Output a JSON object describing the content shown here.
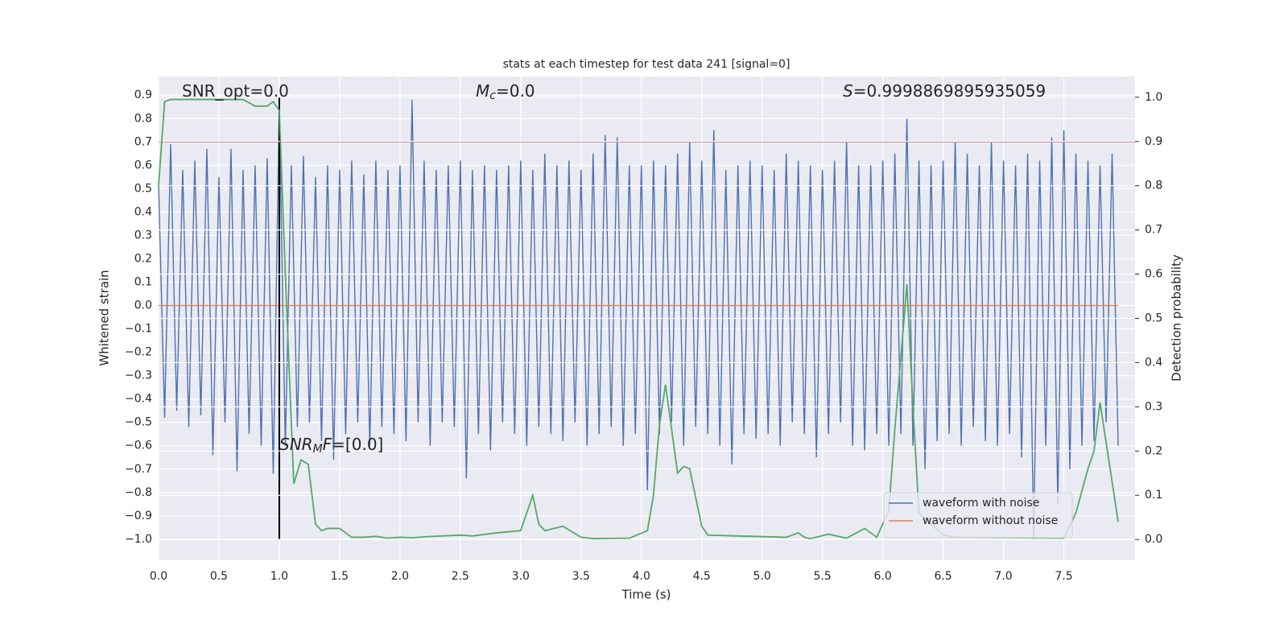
{
  "chart_data": {
    "type": "line",
    "title": "stats at each timestep for test data 241 [signal=0]",
    "xlabel": "Time (s)",
    "ylabel": "Whitened strain",
    "y2label": "Detection probability",
    "xlim": [
      0,
      8.09
    ],
    "ylim": [
      -1.09,
      0.98
    ],
    "y2lim": [
      -0.047,
      1.047
    ],
    "grid": true,
    "legend": "lower right",
    "xticks": [
      {
        "value": 0,
        "label": "0.0"
      },
      {
        "value": 0.5,
        "label": "0.5"
      },
      {
        "value": 1,
        "label": "1.0"
      },
      {
        "value": 1.5,
        "label": "1.5"
      },
      {
        "value": 2,
        "label": "2.0"
      },
      {
        "value": 2.5,
        "label": "2.5"
      },
      {
        "value": 3,
        "label": "3.0"
      },
      {
        "value": 3.5,
        "label": "3.5"
      },
      {
        "value": 4,
        "label": "4.0"
      },
      {
        "value": 4.5,
        "label": "4.5"
      },
      {
        "value": 5,
        "label": "5.0"
      },
      {
        "value": 5.5,
        "label": "5.5"
      },
      {
        "value": 6,
        "label": "6.0"
      },
      {
        "value": 6.5,
        "label": "6.5"
      },
      {
        "value": 7,
        "label": "7.0"
      },
      {
        "value": 7.5,
        "label": "7.5"
      }
    ],
    "yticks": [
      {
        "value": -1,
        "label": "−1.0"
      },
      {
        "value": -0.9,
        "label": "−0.9"
      },
      {
        "value": -0.8,
        "label": "−0.8"
      },
      {
        "value": -0.7,
        "label": "−0.7"
      },
      {
        "value": -0.6,
        "label": "−0.6"
      },
      {
        "value": -0.5,
        "label": "−0.5"
      },
      {
        "value": -0.4,
        "label": "−0.4"
      },
      {
        "value": -0.3,
        "label": "−0.3"
      },
      {
        "value": -0.2,
        "label": "−0.2"
      },
      {
        "value": -0.1,
        "label": "−0.1"
      },
      {
        "value": 0,
        "label": "0.0"
      },
      {
        "value": 0.1,
        "label": "0.1"
      },
      {
        "value": 0.2,
        "label": "0.2"
      },
      {
        "value": 0.3,
        "label": "0.3"
      },
      {
        "value": 0.4,
        "label": "0.4"
      },
      {
        "value": 0.5,
        "label": "0.5"
      },
      {
        "value": 0.6,
        "label": "0.6"
      },
      {
        "value": 0.7,
        "label": "0.7"
      },
      {
        "value": 0.8,
        "label": "0.8"
      },
      {
        "value": 0.9,
        "label": "0.9"
      }
    ],
    "y2ticks": [
      {
        "value": 0,
        "label": "0.0"
      },
      {
        "value": 0.1,
        "label": "0.1"
      },
      {
        "value": 0.2,
        "label": "0.2"
      },
      {
        "value": 0.3,
        "label": "0.3"
      },
      {
        "value": 0.4,
        "label": "0.4"
      },
      {
        "value": 0.5,
        "label": "0.5"
      },
      {
        "value": 0.6,
        "label": "0.6"
      },
      {
        "value": 0.7,
        "label": "0.7"
      },
      {
        "value": 0.8,
        "label": "0.8"
      },
      {
        "value": 0.9,
        "label": "0.9"
      },
      {
        "value": 1,
        "label": "1.0"
      }
    ],
    "series": [
      {
        "name": "waveform with noise",
        "color": "#4c72b0",
        "x": [
          0,
          0.05,
          0.1,
          0.15,
          0.2,
          0.25,
          0.3,
          0.35,
          0.4,
          0.45,
          0.5,
          0.55,
          0.6,
          0.65,
          0.7,
          0.75,
          0.8,
          0.85,
          0.9,
          0.95,
          1,
          1.05,
          1.1,
          1.15,
          1.2,
          1.25,
          1.3,
          1.35,
          1.4,
          1.45,
          1.5,
          1.55,
          1.6,
          1.65,
          1.7,
          1.75,
          1.8,
          1.85,
          1.9,
          1.95,
          2,
          2.05,
          2.1,
          2.15,
          2.2,
          2.25,
          2.3,
          2.35,
          2.4,
          2.45,
          2.5,
          2.55,
          2.6,
          2.65,
          2.7,
          2.75,
          2.8,
          2.85,
          2.9,
          2.95,
          3,
          3.05,
          3.1,
          3.15,
          3.2,
          3.25,
          3.3,
          3.35,
          3.4,
          3.45,
          3.5,
          3.55,
          3.6,
          3.65,
          3.7,
          3.75,
          3.8,
          3.85,
          3.9,
          3.95,
          4,
          4.05,
          4.1,
          4.15,
          4.2,
          4.25,
          4.3,
          4.35,
          4.4,
          4.45,
          4.5,
          4.55,
          4.6,
          4.65,
          4.7,
          4.75,
          4.8,
          4.85,
          4.9,
          4.95,
          5,
          5.05,
          5.1,
          5.15,
          5.2,
          5.25,
          5.3,
          5.35,
          5.4,
          5.45,
          5.5,
          5.55,
          5.6,
          5.65,
          5.7,
          5.75,
          5.8,
          5.85,
          5.9,
          5.95,
          6,
          6.05,
          6.1,
          6.15,
          6.2,
          6.25,
          6.3,
          6.35,
          6.4,
          6.45,
          6.5,
          6.55,
          6.6,
          6.65,
          6.7,
          6.75,
          6.8,
          6.85,
          6.9,
          6.95,
          7,
          7.05,
          7.1,
          7.15,
          7.2,
          7.25,
          7.3,
          7.35,
          7.4,
          7.45,
          7.5,
          7.55,
          7.6,
          7.65,
          7.7,
          7.75,
          7.8,
          7.85,
          7.9,
          7.95
        ],
        "values": [
          0.52,
          -0.48,
          0.69,
          -0.45,
          0.58,
          -0.52,
          0.62,
          -0.47,
          0.67,
          -0.64,
          0.55,
          -0.5,
          0.67,
          -0.71,
          0.58,
          -0.55,
          0.6,
          -0.6,
          0.63,
          -0.72,
          0.85,
          -0.6,
          0.6,
          -0.52,
          0.64,
          -0.5,
          0.55,
          -0.58,
          0.6,
          -0.66,
          0.58,
          -0.55,
          0.62,
          -0.5,
          0.56,
          -0.6,
          0.62,
          -0.52,
          0.58,
          -0.55,
          0.6,
          -0.58,
          0.88,
          -0.5,
          0.62,
          -0.6,
          0.58,
          -0.5,
          0.6,
          -0.52,
          0.62,
          -0.74,
          0.58,
          -0.55,
          0.6,
          -0.62,
          0.58,
          -0.5,
          0.6,
          -0.55,
          0.62,
          -0.6,
          0.58,
          -0.52,
          0.65,
          -0.55,
          0.6,
          -0.58,
          0.62,
          -0.5,
          0.58,
          -0.6,
          0.65,
          -0.55,
          0.73,
          -0.52,
          0.72,
          -0.6,
          0.6,
          -0.55,
          0.6,
          -0.79,
          0.62,
          -0.55,
          0.6,
          -0.5,
          0.65,
          -0.6,
          0.7,
          -0.52,
          0.62,
          -0.55,
          0.75,
          -0.6,
          0.58,
          -0.68,
          0.6,
          -0.55,
          0.62,
          -0.57,
          0.6,
          -0.55,
          0.58,
          -0.6,
          0.65,
          -0.5,
          0.62,
          -0.55,
          0.6,
          -0.65,
          0.58,
          -0.55,
          0.62,
          -0.5,
          0.7,
          -0.6,
          0.6,
          -0.62,
          0.6,
          -0.55,
          0.62,
          -0.6,
          0.65,
          -0.55,
          0.8,
          -0.6,
          0.62,
          -0.7,
          0.6,
          -0.58,
          0.62,
          -0.55,
          0.7,
          -0.6,
          0.65,
          -0.52,
          0.6,
          -0.58,
          0.7,
          -0.6,
          0.62,
          -0.55,
          0.6,
          -0.65,
          0.65,
          -1.0,
          0.62,
          -0.6,
          0.72,
          -0.85,
          0.75,
          -0.7,
          0.65,
          -0.6,
          0.62,
          -0.58,
          0.6,
          -0.5,
          0.65,
          -0.6
        ]
      },
      {
        "name": "waveform without noise",
        "color": "#dd8452",
        "x": [
          0,
          7.95
        ],
        "values": [
          0,
          0
        ]
      },
      {
        "color": "#55a868",
        "axis": "y2",
        "x": [
          0,
          0.05,
          0.1,
          0.2,
          0.3,
          0.4,
          0.5,
          0.6,
          0.7,
          0.8,
          0.85,
          0.9,
          0.95,
          1.0,
          1.05,
          1.12,
          1.18,
          1.24,
          1.3,
          1.35,
          1.4,
          1.5,
          1.55,
          1.6,
          1.7,
          1.8,
          1.9,
          2.0,
          2.1,
          2.2,
          2.5,
          2.6,
          2.8,
          3.0,
          3.05,
          3.1,
          3.15,
          3.2,
          3.35,
          3.5,
          3.6,
          3.9,
          4.05,
          4.1,
          4.15,
          4.2,
          4.3,
          4.35,
          4.4,
          4.5,
          4.55,
          4.8,
          5.2,
          5.3,
          5.35,
          5.4,
          5.55,
          5.7,
          5.85,
          5.95,
          6.05,
          6.1,
          6.2,
          6.25,
          6.3,
          6.4,
          6.5,
          6.6,
          7.5,
          7.6,
          7.7,
          7.75,
          7.8,
          7.85,
          7.95
        ],
        "values": [
          0.8,
          0.99,
          0.995,
          0.995,
          0.995,
          0.995,
          0.995,
          0.995,
          0.995,
          0.98,
          0.98,
          0.98,
          0.99,
          0.97,
          0.6,
          0.126,
          0.18,
          0.17,
          0.035,
          0.02,
          0.025,
          0.025,
          0.015,
          0.005,
          0.005,
          0.007,
          0.003,
          0.005,
          0.004,
          0.006,
          0.01,
          0.008,
          0.015,
          0.02,
          0.06,
          0.1,
          0.035,
          0.02,
          0.03,
          0.005,
          0.002,
          0.003,
          0.02,
          0.1,
          0.26,
          0.35,
          0.15,
          0.165,
          0.16,
          0.03,
          0.01,
          0.008,
          0.005,
          0.015,
          0.005,
          0.002,
          0.012,
          0.003,
          0.025,
          0.005,
          0.065,
          0.25,
          0.577,
          0.3,
          0.06,
          0.035,
          0.01,
          0.005,
          0.003,
          0.06,
          0.16,
          0.2,
          0.31,
          0.22,
          0.04
        ]
      }
    ],
    "hline": {
      "y": 0.7,
      "color": "#c44e52"
    },
    "vline": {
      "x": 1.0,
      "ymin": -1.0,
      "ymax": 0.89,
      "color": "#000000"
    },
    "annotations": [
      {
        "parts": [
          {
            "text": "SNR_opt=0.0",
            "style": "normal"
          }
        ]
      },
      {
        "parts": [
          {
            "text": "M",
            "style": "italic"
          },
          {
            "text": "c",
            "style": "sub"
          },
          {
            "text": "=0.0",
            "style": "normal"
          }
        ]
      },
      {
        "parts": [
          {
            "text": "S",
            "style": "italic"
          },
          {
            "text": "=0.9998869895935059",
            "style": "normal"
          }
        ]
      },
      {
        "parts": [
          {
            "text": "SNR",
            "style": "italic"
          },
          {
            "text": "M",
            "style": "sub"
          },
          {
            "text": "F",
            "style": "italic"
          },
          {
            "text": "=[0.0]",
            "style": "normal"
          }
        ]
      }
    ]
  }
}
